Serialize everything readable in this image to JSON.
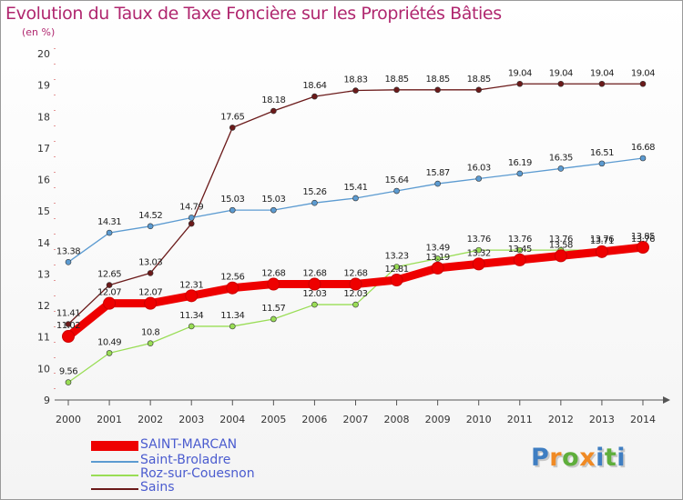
{
  "title": "Evolution du Taux de Taxe Foncière sur les Propriétés Bâties",
  "unit_label": "(en %)",
  "brand": "Proxiti",
  "chart_data": {
    "type": "line",
    "title": "Evolution du Taux de Taxe Foncière sur les Propriétés Bâties",
    "ylabel": "(en %)",
    "xlabel": "",
    "ylim": [
      9,
      20
    ],
    "yticks": [
      "9",
      "10",
      "11",
      "12",
      "13",
      "14",
      "15",
      "16",
      "17",
      "18",
      "19",
      "20"
    ],
    "categories": [
      "2000",
      "2001",
      "2002",
      "2003",
      "2004",
      "2005",
      "2006",
      "2007",
      "2008",
      "2009",
      "2010",
      "2011",
      "2012",
      "2013",
      "2014"
    ],
    "grid": false,
    "legend_position": "bottom-left",
    "series": [
      {
        "name": "Sains",
        "color": "#6b1a1a",
        "values": [
          11.41,
          12.65,
          13.03,
          14.6,
          17.65,
          18.18,
          18.64,
          18.83,
          18.85,
          18.85,
          18.85,
          19.04,
          19.04,
          19.04,
          19.04
        ],
        "labels": [
          "11.41",
          "12.65",
          "13.03",
          "",
          "17.65",
          "18.18",
          "18.64",
          "18.83",
          "18.85",
          "18.85",
          "18.85",
          "19.04",
          "19.04",
          "19.04",
          "19.04"
        ]
      },
      {
        "name": "Saint-Broladre",
        "color": "#5c9bd1",
        "values": [
          13.38,
          14.31,
          14.52,
          14.79,
          15.03,
          15.03,
          15.26,
          15.41,
          15.64,
          15.87,
          16.03,
          16.19,
          16.35,
          16.51,
          16.68
        ],
        "labels": [
          "13.38",
          "14.31",
          "14.52",
          "14.79",
          "15.03",
          "15.03",
          "15.26",
          "15.41",
          "15.64",
          "15.87",
          "16.03",
          "16.19",
          "16.35",
          "16.51",
          "16.68"
        ]
      },
      {
        "name": "Roz-sur-Couesnon",
        "color": "#99dd55",
        "values": [
          9.56,
          10.49,
          10.8,
          11.34,
          11.34,
          11.57,
          12.03,
          12.03,
          13.23,
          13.49,
          13.76,
          13.76,
          13.76,
          13.76,
          13.76
        ],
        "labels": [
          "9.56",
          "10.49",
          "10.8",
          "11.34",
          "11.34",
          "11.57",
          "12.03",
          "12.03",
          "13.23",
          "13.49",
          "13.76",
          "13.76",
          "13.76",
          "13.76",
          "13.76"
        ]
      },
      {
        "name": "SAINT-MARCAN",
        "color": "#ee0000",
        "values": [
          11.02,
          12.07,
          12.07,
          12.31,
          12.56,
          12.68,
          12.68,
          12.68,
          12.81,
          13.19,
          13.32,
          13.45,
          13.58,
          13.71,
          13.85
        ],
        "labels": [
          "11.02",
          "12.07",
          "12.07",
          "12.31",
          "12.56",
          "12.68",
          "12.68",
          "12.68",
          "12.81",
          "13.19",
          "13.32",
          "13.45",
          "13.58",
          "13.71",
          "13.85"
        ]
      }
    ],
    "legend_order": [
      "SAINT-MARCAN",
      "Saint-Broladre",
      "Roz-sur-Couesnon",
      "Sains"
    ]
  }
}
